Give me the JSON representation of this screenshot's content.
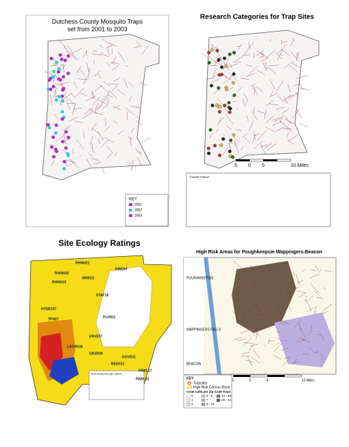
{
  "panels": [
    {
      "title": "Dutchess County Mosquito Traps",
      "subtitle": "set from 2001 to 2003",
      "legend": {
        "title": "KEY",
        "entries": [
          "2001",
          "2002",
          "2003"
        ]
      }
    },
    {
      "title": "Research Categories for Trap Sites",
      "scale": [
        "5",
        "0",
        "5",
        "10 Miles"
      ],
      "legend": {
        "title": "Trapsite Feature"
      }
    },
    {
      "title": "Site Ecology Ratings",
      "sites": [
        "RHIN021",
        "RHIN032",
        "RHIN033",
        "PINE04",
        "MIN022",
        "STAF18",
        "HYDE037",
        "PLVR01",
        "TPN07",
        "UNVE37",
        "LAGR038",
        "UNVR39",
        "DOVE01",
        "BEEK01",
        "PAWL27",
        "PAWL31"
      ],
      "legend": {
        "title": "SITE ECOLOGY (BY JOINT)"
      }
    },
    {
      "title": "High Risk Areas for Poughkeepsie-Wappingers-Beacon",
      "places": [
        "POUGHKEEPSIE",
        "WAPPINGERS FALLS",
        "BEACON"
      ],
      "scale": [
        "5",
        "0",
        "5",
        "10 Miles"
      ],
      "legend": {
        "title": "KEY",
        "entries": [
          "Trapsites",
          "High Risk Census Block"
        ],
        "subtitle": "Crow Calls per Zip Code Tract",
        "classes": [
          "0",
          "1",
          "2",
          "3 - 6",
          "7",
          "8 - 16",
          "13 - 28",
          "29 - 34"
        ]
      }
    }
  ]
}
